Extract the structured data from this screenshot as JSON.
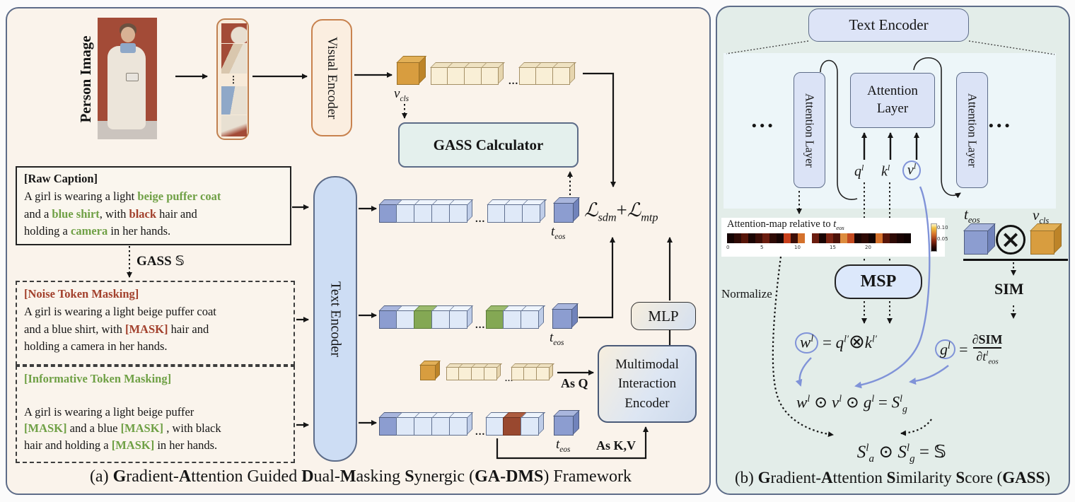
{
  "panel_a": {
    "caption": [
      {
        "t": "(a) "
      },
      {
        "t": "G",
        "b": 1
      },
      {
        "t": "radient-"
      },
      {
        "t": "A",
        "b": 1
      },
      {
        "t": "ttention Guided "
      },
      {
        "t": "D",
        "b": 1
      },
      {
        "t": "ual-"
      },
      {
        "t": "M",
        "b": 1
      },
      {
        "t": "asking "
      },
      {
        "t": "S",
        "b": 1
      },
      {
        "t": "ynergic ("
      },
      {
        "t": "GA-DMS",
        "b": 1
      },
      {
        "t": ") Framework"
      }
    ],
    "person_image_label": "Person Image",
    "visual_encoder": "Visual Encoder",
    "text_encoder": "Text Encoder",
    "gass_calculator": "GASS Calculator",
    "mlp": "MLP",
    "mie": [
      "Multimodal",
      "Interaction",
      "Encoder"
    ],
    "as_q": "As Q",
    "as_kv": "As K,V",
    "ellipsis": "...",
    "loss": [
      {
        "t": "ℒ",
        "i": 1
      },
      {
        "t": "sdm",
        "i": 1,
        "sub": 1
      },
      {
        "t": "+"
      },
      {
        "t": "ℒ",
        "i": 1
      },
      {
        "t": "mtp",
        "i": 1,
        "sub": 1
      }
    ],
    "gass_s": [
      {
        "t": "GASS ",
        "b": 1
      },
      {
        "t": "𝕊",
        "c": "ds"
      }
    ],
    "v_cls_label": [
      {
        "t": "v",
        "i": 1
      },
      {
        "t": "cls",
        "i": 1,
        "sub": 1
      }
    ],
    "t_eos_label": [
      {
        "t": "t",
        "i": 1
      },
      {
        "t": "eos",
        "i": 1,
        "sub": 1
      }
    ],
    "raw_caption": [
      {
        "t": "[Raw Caption]",
        "b": 1
      },
      {
        "t": "\nA girl is wearing a light "
      },
      {
        "t": "beige puffer coat",
        "c": "green"
      },
      {
        "t": "\nand a "
      },
      {
        "t": "blue shirt",
        "c": "green"
      },
      {
        "t": ", with "
      },
      {
        "t": "black",
        "c": "red"
      },
      {
        "t": " hair and\nholding a "
      },
      {
        "t": "camera",
        "c": "green"
      },
      {
        "t": " in her hands."
      }
    ],
    "noise_caption": [
      {
        "t": "[Noise Token Masking]",
        "c": "red"
      },
      {
        "t": "\nA girl is wearing a light beige puffer coat\nand a blue shirt, with "
      },
      {
        "t": "[MASK]",
        "c": "red"
      },
      {
        "t": " hair and\nholding a camera in her hands."
      }
    ],
    "informative_caption": [
      {
        "t": "[Informative Token Masking]",
        "c": "green"
      },
      {
        "t": "\n\nA girl is wearing a light beige puffer\n"
      },
      {
        "t": "[MASK]",
        "c": "green"
      },
      {
        "t": " and a blue "
      },
      {
        "t": "[MASK]",
        "c": "green"
      },
      {
        "t": " , with black\nhair and holding a "
      },
      {
        "t": "[MASK]",
        "c": "green"
      },
      {
        "t": " in her hands."
      }
    ],
    "rows": {
      "visual_top_g1": [
        "vlight",
        "vlight",
        "vlight",
        "vlight"
      ],
      "visual_top_g2": [
        "vlight",
        "vlight",
        "vlight"
      ],
      "vcls_cube": [
        "vcls"
      ],
      "text_raw_g1": [
        "dark",
        "light",
        "light",
        "light",
        "light"
      ],
      "text_raw_g2": [
        "light",
        "light",
        "light"
      ],
      "text_noise_g1": [
        "dark",
        "light",
        "green",
        "light",
        "light"
      ],
      "text_noise_g2": [
        "green",
        "light",
        "light"
      ],
      "visual_mid_g1": [
        "vlight",
        "vlight",
        "vlight",
        "vlight"
      ],
      "visual_mid_g2": [
        "vlight",
        "vlight",
        "vlight"
      ],
      "text_info_g1": [
        "dark",
        "light",
        "light",
        "light",
        "light"
      ],
      "text_info_g2": [
        "light",
        "brown",
        "light"
      ],
      "eos_cube": [
        "dark"
      ]
    }
  },
  "panel_b": {
    "caption": [
      {
        "t": "(b) "
      },
      {
        "t": "G",
        "b": 1
      },
      {
        "t": "radient-"
      },
      {
        "t": "A",
        "b": 1
      },
      {
        "t": "ttention "
      },
      {
        "t": "S",
        "b": 1
      },
      {
        "t": "imilarity "
      },
      {
        "t": "S",
        "b": 1
      },
      {
        "t": "core ("
      },
      {
        "t": "GASS",
        "b": 1
      },
      {
        "t": ")"
      }
    ],
    "text_encoder": "Text Encoder",
    "attention_layer": "Attention Layer",
    "attention_layer_center": [
      "Attention",
      "Layer"
    ],
    "dots": "• • •",
    "q_label": [
      {
        "t": "q",
        "i": 1
      },
      {
        "t": "l",
        "i": 1,
        "sup": 1
      }
    ],
    "k_label": [
      {
        "t": "k",
        "i": 1
      },
      {
        "t": "l",
        "i": 1,
        "sup": 1
      }
    ],
    "v_label": [
      {
        "circ": [
          {
            "t": "v",
            "i": 1
          },
          {
            "t": "l",
            "i": 1,
            "sup": 1
          }
        ]
      }
    ],
    "t_eos_label": [
      {
        "t": "t",
        "i": 1
      },
      {
        "t": "eos",
        "i": 1,
        "sub": 1
      }
    ],
    "v_cls_label": [
      {
        "t": "v",
        "i": 1
      },
      {
        "t": "cls",
        "i": 1,
        "sub": 1
      }
    ],
    "otimes": "×",
    "sim": "SIM",
    "msp": "MSP",
    "normalize": "Normalize",
    "attn_map": {
      "title": [
        {
          "t": "Attention-map relative to "
        },
        {
          "t": "t",
          "i": 1
        },
        {
          "t": "eos",
          "i": 1,
          "sub": 1
        }
      ],
      "cells": [
        "#140302",
        "#2e0a05",
        "#571509",
        "#1b0503",
        "#3c0e07",
        "#6b1d10",
        "#2e0a05",
        "#170403",
        "#c8401c",
        "#3c0e07",
        "#d4712c",
        "#ffffff",
        "#6b1d10",
        "#190403",
        "#7c2413",
        "#4c1208",
        "#dd8c3e",
        "#c34a20",
        "#1b0503",
        "#2e0a05",
        "#140302",
        "#d4712c",
        "#571509",
        "#2e0a05",
        "#190403",
        "#0f0201"
      ],
      "ticks": [
        "0",
        "5",
        "10",
        "15",
        "20"
      ],
      "colorbar_labels": [
        "0.10",
        "0.05"
      ]
    },
    "w_formula": [
      {
        "circ": [
          {
            "t": "w",
            "i": 1
          },
          {
            "t": "l",
            "i": 1,
            "sup": 1
          }
        ]
      },
      {
        "t": " = "
      },
      {
        "t": "q",
        "i": 1
      },
      {
        "t": "l′",
        "i": 1,
        "sup": 1
      },
      {
        "t": "⊗",
        "c": "op"
      },
      {
        "t": "k",
        "i": 1
      },
      {
        "t": "l′",
        "i": 1,
        "sup": 1
      }
    ],
    "g_formula_lhs": [
      {
        "circ": [
          {
            "t": "g",
            "i": 1
          },
          {
            "t": "l",
            "i": 1,
            "sup": 1
          }
        ]
      },
      {
        "t": " ="
      }
    ],
    "g_formula_num": [
      {
        "t": "∂"
      },
      {
        "t": "SIM",
        "b": 1
      }
    ],
    "g_formula_den": [
      {
        "t": "∂"
      },
      {
        "t": "t",
        "i": 1
      },
      {
        "t": "l",
        "i": 1,
        "sup": 1
      },
      {
        "t": "eos",
        "i": 1,
        "sub": 1
      }
    ],
    "wvg_formula": [
      {
        "t": "w",
        "i": 1
      },
      {
        "t": "l",
        "i": 1,
        "sup": 1
      },
      {
        "t": " ⊙ "
      },
      {
        "t": "v",
        "i": 1
      },
      {
        "t": "l",
        "i": 1,
        "sup": 1
      },
      {
        "t": " ⊙ "
      },
      {
        "t": "g",
        "i": 1
      },
      {
        "t": "l",
        "i": 1,
        "sup": 1
      },
      {
        "t": " = "
      },
      {
        "t": "S",
        "i": 1
      },
      {
        "t": "l",
        "i": 1,
        "sup": 1
      },
      {
        "t": "g",
        "i": 1,
        "sub": 1
      }
    ],
    "final_formula": [
      {
        "t": "S",
        "i": 1
      },
      {
        "t": "l",
        "i": 1,
        "sup": 1
      },
      {
        "t": "a",
        "i": 1,
        "sub": 1
      },
      {
        "t": " ⊙ "
      },
      {
        "t": "S",
        "i": 1
      },
      {
        "t": "l",
        "i": 1,
        "sup": 1
      },
      {
        "t": "g",
        "i": 1,
        "sub": 1
      },
      {
        "t": " =  "
      },
      {
        "t": "𝕊",
        "c": "ds"
      }
    ]
  },
  "colors": {
    "panel_a_bg": "#faf3eb",
    "panel_b_bg": "#e3ede9",
    "inner_b_bg": "#edf6f9",
    "blue_box": "#cdddf4",
    "periwinkle_box": "#dde4f7",
    "visual_encoder_fill": "#fbeee0",
    "visual_encoder_border": "#c8824e",
    "gass_calc_fill": "#e4f0ed",
    "accent_blue_arrow": "#8093d8",
    "green_text": "#6fa045",
    "red_text": "#a2402c"
  }
}
